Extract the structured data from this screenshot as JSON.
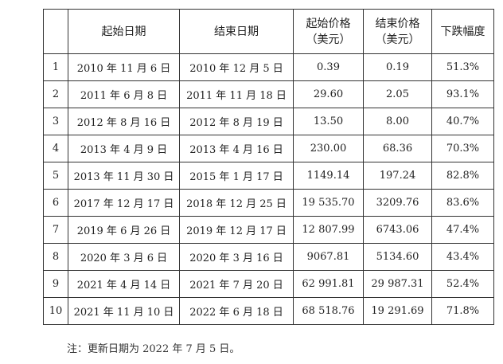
{
  "table": {
    "headers": {
      "index": "",
      "start_date": "起始日期",
      "end_date": "结束日期",
      "start_price": [
        "起始价格",
        "（美元）"
      ],
      "end_price": [
        "结束价格",
        "（美元）"
      ],
      "decline": "下跌幅度"
    },
    "rows": [
      {
        "index": "1",
        "start_date": "2010 年 11 月 6 日",
        "end_date": "2010 年 12 月 5 日",
        "start_price": "0.39",
        "end_price": "0.19",
        "decline": "51.3%"
      },
      {
        "index": "2",
        "start_date": "2011 年 6 月 8 日",
        "end_date": "2011 年 11 月 18 日",
        "start_price": "29.60",
        "end_price": "2.05",
        "decline": "93.1%"
      },
      {
        "index": "3",
        "start_date": "2012 年 8 月 16 日",
        "end_date": "2012 年 8 月 19 日",
        "start_price": "13.50",
        "end_price": "8.00",
        "decline": "40.7%"
      },
      {
        "index": "4",
        "start_date": "2013 年 4 月 9 日",
        "end_date": "2013 年 4 月 16 日",
        "start_price": "230.00",
        "end_price": "68.36",
        "decline": "70.3%"
      },
      {
        "index": "5",
        "start_date": "2013 年 11 月 30 日",
        "end_date": "2015 年 1 月 17 日",
        "start_price": "1149.14",
        "end_price": "197.24",
        "decline": "82.8%"
      },
      {
        "index": "6",
        "start_date": "2017 年 12 月 17 日",
        "end_date": "2018 年 12 月 25 日",
        "start_price": "19 535.70",
        "end_price": "3209.76",
        "decline": "83.6%"
      },
      {
        "index": "7",
        "start_date": "2019 年 6 月 26 日",
        "end_date": "2019 年 12 月 17 日",
        "start_price": "12 807.99",
        "end_price": "6743.06",
        "decline": "47.4%"
      },
      {
        "index": "8",
        "start_date": "2020 年 3 月 6 日",
        "end_date": "2020 年 3 月 16 日",
        "start_price": "9067.81",
        "end_price": "5134.60",
        "decline": "43.4%"
      },
      {
        "index": "9",
        "start_date": "2021 年 4 月 14 日",
        "end_date": "2021 年 7 月 20 日",
        "start_price": "62 991.81",
        "end_price": "29 987.31",
        "decline": "52.4%"
      },
      {
        "index": "10",
        "start_date": "2021 年 11 月 10 日",
        "end_date": "2022 年 6 月 18 日",
        "start_price": "68 518.76",
        "end_price": "19 291.69",
        "decline": "71.8%"
      }
    ]
  },
  "note": "注：更新日期为 2022 年 7 月 5 日。"
}
